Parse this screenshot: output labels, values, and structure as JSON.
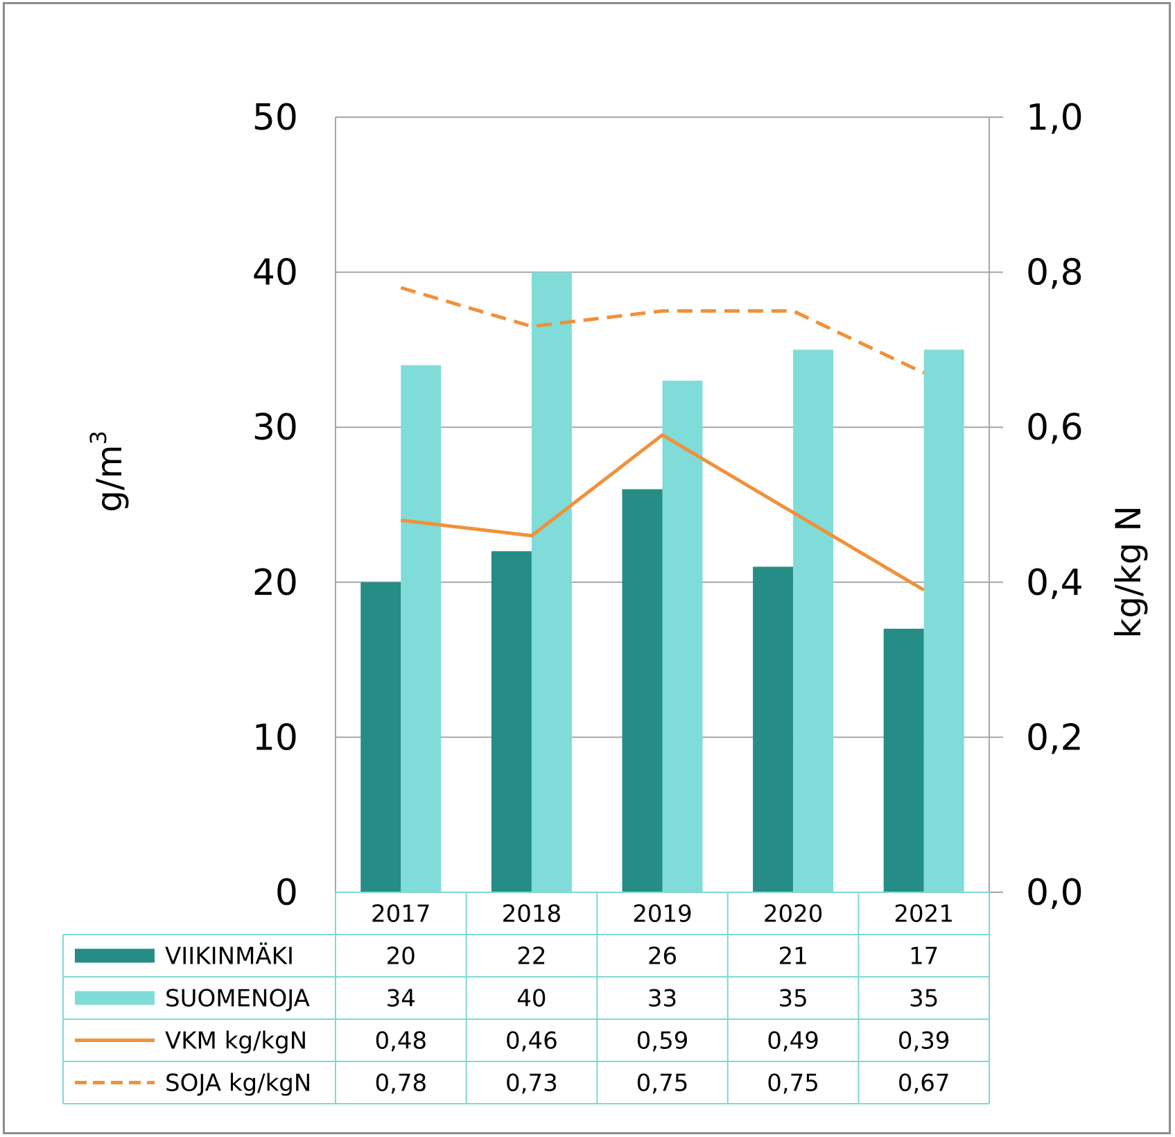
{
  "chart_data": {
    "type": "bar",
    "categories": [
      "2017",
      "2018",
      "2019",
      "2020",
      "2021"
    ],
    "series": [
      {
        "name": "VIIKINMÄKI",
        "type": "bar",
        "axis": "left",
        "color": "#268c86",
        "values": [
          20,
          22,
          26,
          21,
          17
        ],
        "labels": [
          "20",
          "22",
          "26",
          "21",
          "17"
        ]
      },
      {
        "name": "SUOMENOJA",
        "type": "bar",
        "axis": "left",
        "color": "#80dcd8",
        "values": [
          34,
          40,
          33,
          35,
          35
        ],
        "labels": [
          "34",
          "40",
          "33",
          "35",
          "35"
        ]
      },
      {
        "name": "VKM kg/kgN",
        "type": "line",
        "style": "solid",
        "axis": "right",
        "color": "#f0913a",
        "values": [
          0.48,
          0.46,
          0.59,
          0.49,
          0.39
        ],
        "labels": [
          "0,48",
          "0,46",
          "0,59",
          "0,49",
          "0,39"
        ]
      },
      {
        "name": "SOJA kg/kgN",
        "type": "line",
        "style": "dashed",
        "axis": "right",
        "color": "#f0913a",
        "values": [
          0.78,
          0.73,
          0.75,
          0.75,
          0.67
        ],
        "labels": [
          "0,78",
          "0,73",
          "0,75",
          "0,75",
          "0,67"
        ]
      }
    ],
    "ylabel_prefix": "g/m",
    "ylabel_sup": "3",
    "y2label": "kg/kg N",
    "ylim": [
      0,
      50
    ],
    "y2lim": [
      0,
      1.0
    ],
    "yticks": [
      "0",
      "10",
      "20",
      "30",
      "40",
      "50"
    ],
    "y2ticks": [
      "0,0",
      "0,2",
      "0,4",
      "0,6",
      "0,8",
      "1,0"
    ],
    "grid": true,
    "legend": "data-table"
  },
  "colors": {
    "table_border": "#7fd9d3",
    "grid": "#a6a6a6"
  }
}
